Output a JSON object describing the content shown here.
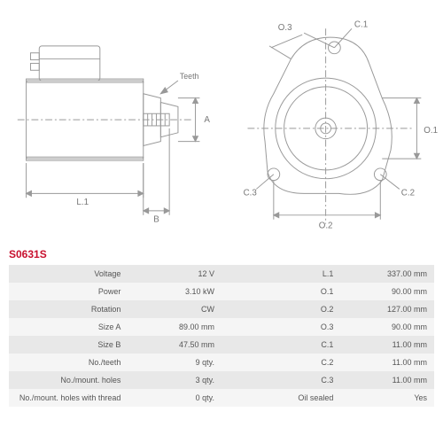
{
  "product_code": "S0631S",
  "diagram_labels": {
    "left": {
      "L1": "L.1",
      "B": "B",
      "A": "A",
      "Teeth": "Teeth"
    },
    "right": {
      "O1": "O.1",
      "O2": "O.2",
      "O3": "O.3",
      "C1": "C.1",
      "C2": "C.2",
      "C3": "C.3"
    }
  },
  "specs": {
    "rows": [
      {
        "l1": "Voltage",
        "v1": "12 V",
        "l2": "L.1",
        "v2": "337.00 mm"
      },
      {
        "l1": "Power",
        "v1": "3.10 kW",
        "l2": "O.1",
        "v2": "90.00 mm"
      },
      {
        "l1": "Rotation",
        "v1": "CW",
        "l2": "O.2",
        "v2": "127.00 mm"
      },
      {
        "l1": "Size A",
        "v1": "89.00 mm",
        "l2": "O.3",
        "v2": "90.00 mm"
      },
      {
        "l1": "Size B",
        "v1": "47.50 mm",
        "l2": "C.1",
        "v2": "11.00 mm"
      },
      {
        "l1": "No./teeth",
        "v1": "9 qty.",
        "l2": "C.2",
        "v2": "11.00 mm"
      },
      {
        "l1": "No./mount. holes",
        "v1": "3 qty.",
        "l2": "C.3",
        "v2": "11.00 mm"
      },
      {
        "l1": "No./mount. holes with thread",
        "v1": "0 qty.",
        "l2": "Oil sealed",
        "v2": "Yes"
      }
    ]
  },
  "style": {
    "stroke": "#999",
    "stroke_width": 1,
    "text_color": "#777",
    "font_size": 9,
    "code_color": "#c8102e",
    "row_odd": "#e8e8e8",
    "row_even": "#f5f5f5"
  }
}
